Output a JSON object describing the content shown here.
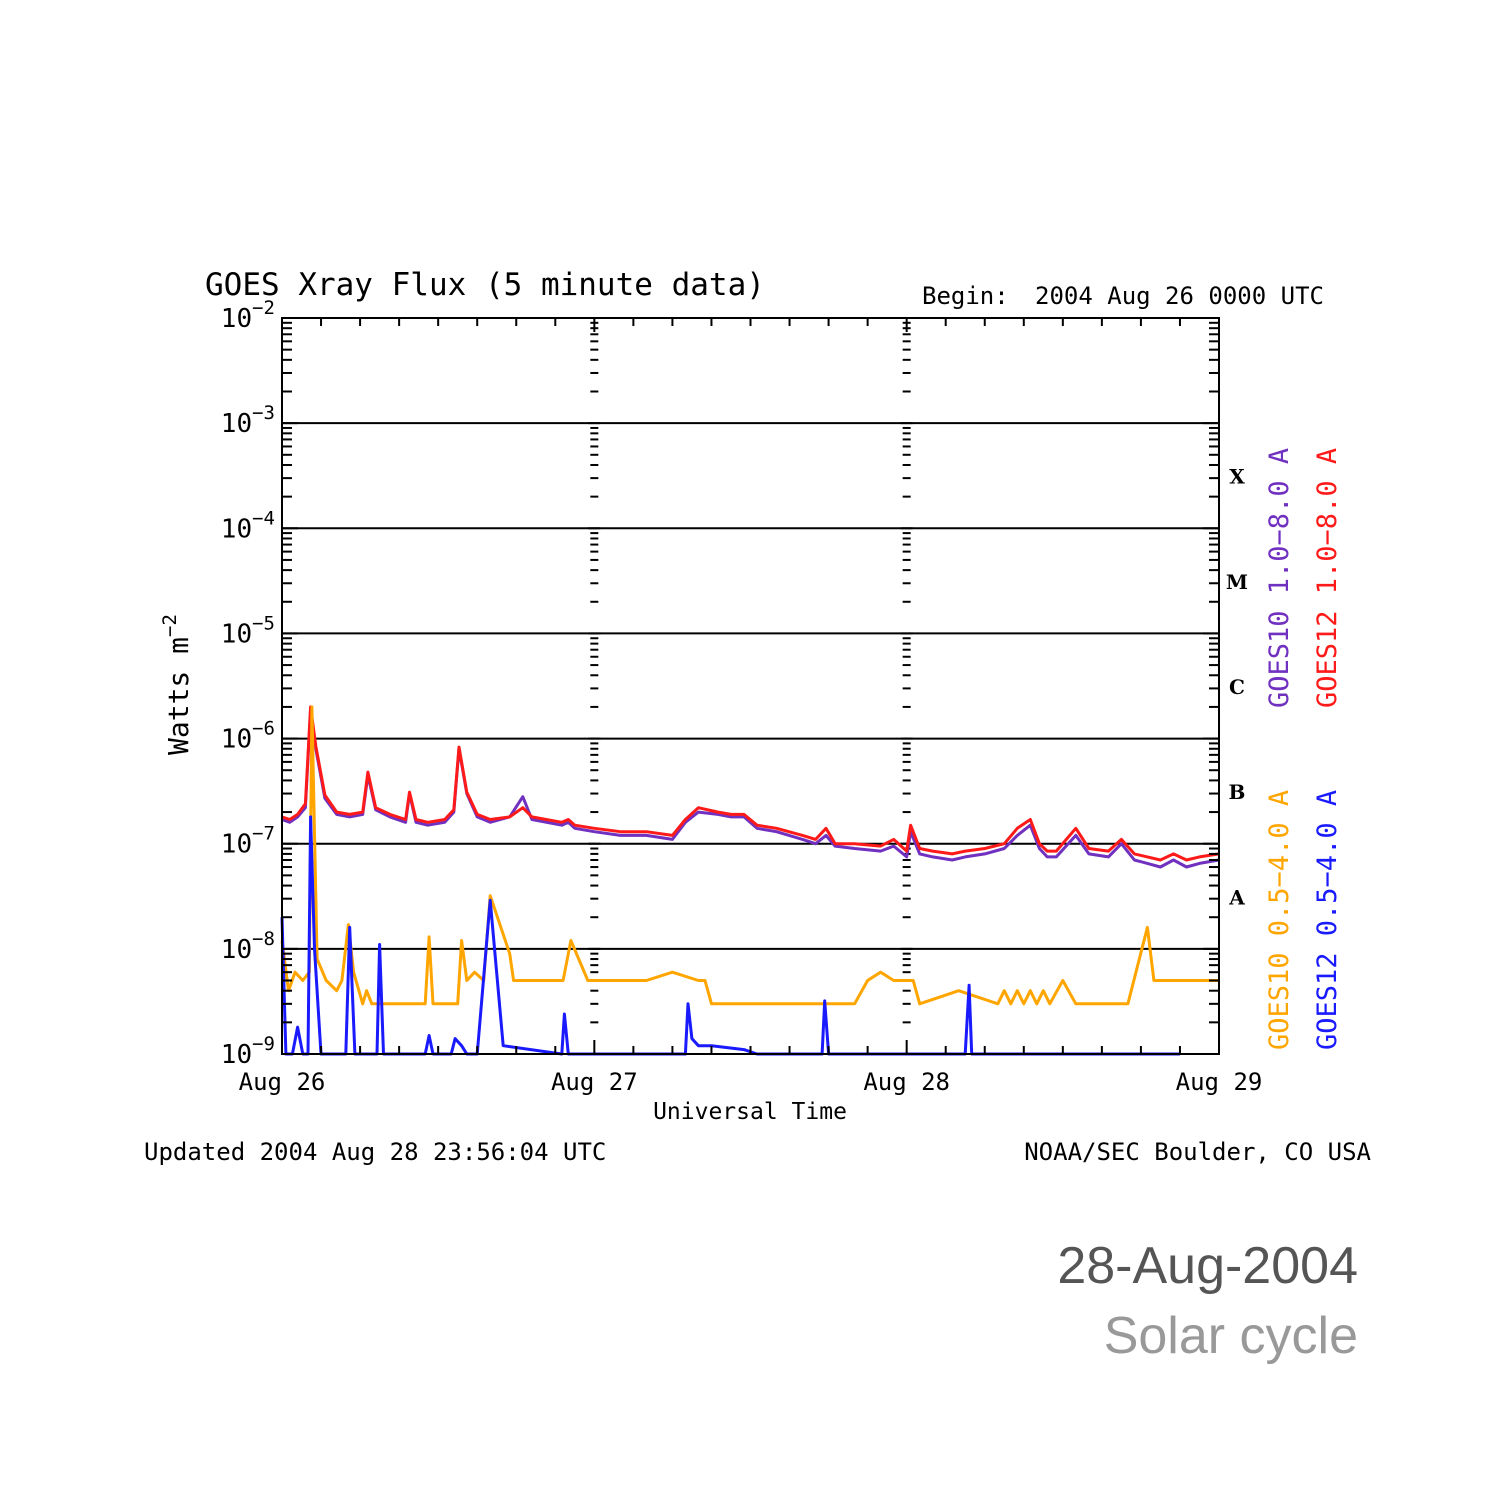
{
  "chart_data": {
    "type": "line",
    "title": "GOES Xray Flux (5 minute data)",
    "begin_label": "Begin:",
    "begin_value": "2004 Aug 26 0000 UTC",
    "xlabel": "Universal Time",
    "ylabel_main": "Watts m",
    "ylabel_exp": "−2",
    "x_range": [
      "2004-08-26 00:00",
      "2004-08-29 00:00"
    ],
    "x_ticks": [
      {
        "label": "Aug 26",
        "day": 0
      },
      {
        "label": "Aug 27",
        "day": 1
      },
      {
        "label": "Aug 28",
        "day": 2
      },
      {
        "label": "Aug 29",
        "day": 3
      }
    ],
    "y_scale": "log",
    "ylim": [
      1e-09,
      0.01
    ],
    "y_ticks": [
      {
        "base": "10",
        "exp": "−9",
        "value": 1e-09
      },
      {
        "base": "10",
        "exp": "−8",
        "value": 1e-08
      },
      {
        "base": "10",
        "exp": "−7",
        "value": 1e-07
      },
      {
        "base": "10",
        "exp": "−6",
        "value": 1e-06
      },
      {
        "base": "10",
        "exp": "−5",
        "value": 1e-05
      },
      {
        "base": "10",
        "exp": "−4",
        "value": 0.0001
      },
      {
        "base": "10",
        "exp": "−3",
        "value": 0.001
      },
      {
        "base": "10",
        "exp": "−2",
        "value": 0.01
      }
    ],
    "flare_classes": [
      {
        "label": "A",
        "value": 3.16e-08
      },
      {
        "label": "B",
        "value": 3.16e-07
      },
      {
        "label": "C",
        "value": 3.16e-06
      },
      {
        "label": "M",
        "value": 3.16e-05
      },
      {
        "label": "X",
        "value": 0.000316
      }
    ],
    "hgrid_values": [
      1e-08,
      1e-07,
      1e-06,
      1e-05,
      0.0001,
      0.001
    ],
    "legend_long": [
      {
        "name": "GOES10 1.0−8.0 A",
        "color": "#7030c0"
      },
      {
        "name": "GOES12 1.0−8.0 A",
        "color": "#ff1a1a"
      }
    ],
    "legend_short": [
      {
        "name": "GOES10 0.5−4.0 A",
        "color": "#ffa500"
      },
      {
        "name": "GOES12 0.5−4.0 A",
        "color": "#1a1aff"
      }
    ],
    "series": [
      {
        "name": "GOES10 1.0−8.0 A",
        "color": "#7030c0",
        "x_hours": [
          0,
          0.6,
          1.2,
          1.8,
          2.2,
          2.6,
          3.3,
          4.2,
          5.2,
          6.2,
          6.6,
          7.2,
          8.3,
          9.5,
          9.8,
          10.3,
          11.2,
          12.5,
          13.2,
          13.6,
          14.2,
          15.0,
          15.5,
          16.0,
          17.5,
          18.5,
          19.2,
          21.5,
          22.0,
          22.5,
          24.0,
          26.0,
          28.0,
          30.0,
          31.0,
          32.0,
          33.5,
          34.5,
          35.5,
          36.5,
          38.0,
          40.0,
          41.0,
          41.8,
          42.5,
          44.0,
          46.0,
          47.0,
          48.0,
          48.3,
          49.0,
          50.0,
          51.5,
          52.5,
          54.0,
          55.5,
          56.5,
          57.5,
          58.2,
          58.8,
          59.5,
          61.0,
          62.0,
          63.5,
          64.5,
          65.5,
          66.5,
          67.5,
          68.5,
          69.5,
          70.5,
          72.0
        ],
        "values": [
          1.7e-07,
          1.6e-07,
          1.8e-07,
          2.2e-07,
          1.9e-06,
          8e-07,
          2.7e-07,
          1.9e-07,
          1.8e-07,
          1.9e-07,
          4.5e-07,
          2.1e-07,
          1.8e-07,
          1.6e-07,
          3e-07,
          1.6e-07,
          1.5e-07,
          1.6e-07,
          2e-07,
          8e-07,
          3e-07,
          1.8e-07,
          1.7e-07,
          1.6e-07,
          1.8e-07,
          2.8e-07,
          1.7e-07,
          1.5e-07,
          1.6e-07,
          1.4e-07,
          1.3e-07,
          1.2e-07,
          1.2e-07,
          1.1e-07,
          1.6e-07,
          2e-07,
          1.9e-07,
          1.8e-07,
          1.8e-07,
          1.4e-07,
          1.3e-07,
          1.1e-07,
          1e-07,
          1.2e-07,
          9.5e-08,
          9e-08,
          8.5e-08,
          9.5e-08,
          7.5e-08,
          1.3e-07,
          8e-08,
          7.5e-08,
          7e-08,
          7.5e-08,
          8e-08,
          9e-08,
          1.2e-07,
          1.5e-07,
          9e-08,
          7.5e-08,
          7.5e-08,
          1.2e-07,
          8e-08,
          7.5e-08,
          1e-07,
          7e-08,
          6.5e-08,
          6e-08,
          7e-08,
          6e-08,
          6.5e-08,
          7e-08
        ]
      },
      {
        "name": "GOES12 1.0−8.0 A",
        "color": "#ff1a1a",
        "x_hours": [
          0,
          0.6,
          1.2,
          1.8,
          2.2,
          2.6,
          3.3,
          4.2,
          5.2,
          6.2,
          6.6,
          7.2,
          8.3,
          9.5,
          9.8,
          10.3,
          11.2,
          12.5,
          13.2,
          13.6,
          14.2,
          15.0,
          15.5,
          16.0,
          17.5,
          18.5,
          19.2,
          21.5,
          22.0,
          22.5,
          24.0,
          26.0,
          28.0,
          30.0,
          31.0,
          32.0,
          33.5,
          34.5,
          35.5,
          36.5,
          38.0,
          40.0,
          41.0,
          41.8,
          42.5,
          44.0,
          46.0,
          47.0,
          48.0,
          48.3,
          49.0,
          50.0,
          51.5,
          52.5,
          54.0,
          55.5,
          56.5,
          57.5,
          58.2,
          58.8,
          59.5,
          61.0,
          62.0,
          63.5,
          64.5,
          65.5,
          66.5,
          67.5,
          68.5,
          69.5,
          70.5,
          72.0
        ],
        "values": [
          1.8e-07,
          1.7e-07,
          1.9e-07,
          2.4e-07,
          2e-06,
          8.5e-07,
          2.9e-07,
          2e-07,
          1.9e-07,
          2e-07,
          4.8e-07,
          2.2e-07,
          1.9e-07,
          1.7e-07,
          3.1e-07,
          1.7e-07,
          1.6e-07,
          1.7e-07,
          2.1e-07,
          8.3e-07,
          3.1e-07,
          1.9e-07,
          1.8e-07,
          1.7e-07,
          1.8e-07,
          2.2e-07,
          1.8e-07,
          1.6e-07,
          1.7e-07,
          1.5e-07,
          1.4e-07,
          1.3e-07,
          1.3e-07,
          1.2e-07,
          1.7e-07,
          2.2e-07,
          2e-07,
          1.9e-07,
          1.9e-07,
          1.5e-07,
          1.4e-07,
          1.2e-07,
          1.1e-07,
          1.4e-07,
          1e-07,
          1e-07,
          9.5e-08,
          1.1e-07,
          8.5e-08,
          1.5e-07,
          9e-08,
          8.5e-08,
          8e-08,
          8.5e-08,
          9e-08,
          1e-07,
          1.4e-07,
          1.7e-07,
          1e-07,
          8.5e-08,
          8.5e-08,
          1.4e-07,
          9e-08,
          8.5e-08,
          1.1e-07,
          8e-08,
          7.5e-08,
          7e-08,
          8e-08,
          7e-08,
          7.5e-08,
          8e-08
        ]
      },
      {
        "name": "GOES10 0.5−4.0 A",
        "color": "#ffa500",
        "x_hours": [
          0,
          0.5,
          1.0,
          1.6,
          2.1,
          2.3,
          2.7,
          3.4,
          4.2,
          4.6,
          5.1,
          5.5,
          6.2,
          6.5,
          6.9,
          7.3,
          8.0,
          11.0,
          11.3,
          11.6,
          11.9,
          12.2,
          13.0,
          13.5,
          13.8,
          14.2,
          14.8,
          15.5,
          16.0,
          17.5,
          17.8,
          18.2,
          19.0,
          21.0,
          21.3,
          21.6,
          22.2,
          23.5,
          24.0,
          24.5,
          25.0,
          26.0,
          28.0,
          30.0,
          32.0,
          32.5,
          33.0,
          33.5,
          36.0,
          36.5,
          37.0,
          37.5,
          38.0,
          38.5,
          39.0,
          39.5,
          40.0,
          41.0,
          42.0,
          43.0,
          44.0,
          45.0,
          46.0,
          47.0,
          47.5,
          48.0,
          48.5,
          49.0,
          52.0,
          55.0,
          55.5,
          56.0,
          56.5,
          57.0,
          57.5,
          58.0,
          58.5,
          59.0,
          60.0,
          61.0,
          62.0,
          63.0,
          64.0,
          65.0,
          66.5,
          67.0,
          69.0,
          72.0
        ],
        "values": [
          1.2e-08,
          4e-09,
          6e-09,
          5e-09,
          6e-09,
          2e-06,
          8e-09,
          5e-09,
          4e-09,
          5e-09,
          1.7e-08,
          6e-09,
          3e-09,
          4e-09,
          3e-09,
          3e-09,
          3e-09,
          3e-09,
          1.3e-08,
          3e-09,
          3e-09,
          3e-09,
          3e-09,
          3e-09,
          1.2e-08,
          5e-09,
          6e-09,
          5e-09,
          3.2e-08,
          9e-09,
          5e-09,
          5e-09,
          5e-09,
          5e-09,
          5e-09,
          5e-09,
          1.2e-08,
          5e-09,
          5e-09,
          5e-09,
          5e-09,
          5e-09,
          5e-09,
          6e-09,
          5e-09,
          5e-09,
          3e-09,
          3e-09,
          3e-09,
          3e-09,
          3e-09,
          3e-09,
          3e-09,
          3e-09,
          3e-09,
          3e-09,
          3e-09,
          3e-09,
          3e-09,
          3e-09,
          3e-09,
          5e-09,
          6e-09,
          5e-09,
          5e-09,
          5e-09,
          5e-09,
          3e-09,
          4e-09,
          3e-09,
          4e-09,
          3e-09,
          4e-09,
          3e-09,
          4e-09,
          3e-09,
          4e-09,
          3e-09,
          5e-09,
          3e-09,
          3e-09,
          3e-09,
          3e-09,
          3e-09,
          1.6e-08,
          5e-09,
          5e-09,
          5e-09
        ]
      },
      {
        "name": "GOES12 0.5−4.0 A",
        "color": "#1a1aff",
        "x_hours": [
          0,
          0.3,
          0.8,
          1.2,
          1.6,
          2.0,
          2.2,
          2.5,
          3.0,
          3.6,
          4.6,
          4.9,
          5.2,
          5.6,
          6.2,
          7.3,
          7.5,
          7.8,
          9.2,
          9.4,
          9.6,
          11.0,
          11.3,
          11.6,
          11.9,
          12.5,
          13.0,
          13.3,
          13.8,
          14.2,
          15.0,
          16.0,
          17.0,
          21.5,
          21.7,
          22.0,
          31.0,
          31.2,
          31.5,
          32.0,
          33.0,
          35.5,
          36.5,
          41.5,
          41.7,
          42.0,
          45.5,
          45.7,
          46.0,
          48.0,
          52.5,
          52.8,
          53.0,
          55.5,
          56.0,
          56.5,
          57.0,
          57.5,
          58.0,
          58.5,
          60.0,
          60.5,
          60.8,
          61.0,
          64.0,
          68.0,
          68.5,
          69.0
        ],
        "values": [
          2e-08,
          1e-09,
          1e-09,
          1.8e-09,
          1e-09,
          1e-09,
          1.8e-07,
          1e-08,
          1e-09,
          1e-09,
          1e-09,
          1e-09,
          1.6e-08,
          1e-09,
          1e-09,
          1e-09,
          1.1e-08,
          1e-09,
          1e-09,
          1e-09,
          1e-09,
          1e-09,
          1.5e-09,
          1e-09,
          1e-09,
          1e-09,
          1e-09,
          1.4e-09,
          1.2e-09,
          1e-09,
          1e-09,
          2.9e-08,
          1.2e-09,
          1e-09,
          2.4e-09,
          1e-09,
          1e-09,
          3e-09,
          1.4e-09,
          1.2e-09,
          1.2e-09,
          1.1e-09,
          1e-09,
          1e-09,
          3.2e-09,
          1e-09,
          1e-09,
          1e-09,
          1e-09,
          1e-09,
          1e-09,
          4.5e-09,
          1e-09,
          1e-09,
          1e-09,
          1e-09,
          1e-09,
          1e-09,
          1e-09,
          1e-09,
          1e-09,
          1e-09,
          1e-09,
          1e-09,
          1e-09,
          1e-09,
          1e-09,
          1e-09
        ]
      }
    ],
    "footer_left": "Updated 2004 Aug 28 23:56:04 UTC",
    "footer_right": "NOAA/SEC Boulder, CO USA"
  },
  "caption": {
    "date": "28-Aug-2004",
    "subtitle": "Solar cycle"
  }
}
